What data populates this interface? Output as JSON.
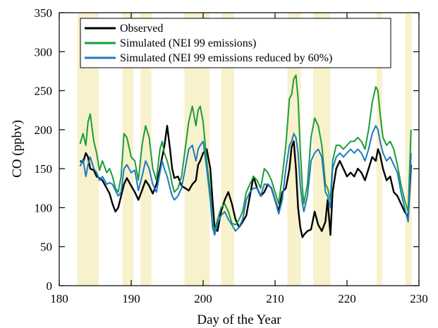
{
  "chart_data": {
    "type": "line",
    "xlabel": "Day of the Year",
    "ylabel": "CO (ppbv)",
    "xlim": [
      180,
      230
    ],
    "ylim": [
      0,
      350
    ],
    "xticks": [
      "180",
      "190",
      "200",
      "210",
      "220",
      "230"
    ],
    "yticks": [
      "0",
      "50",
      "100",
      "150",
      "200",
      "250",
      "300",
      "350"
    ],
    "legend_position": "top",
    "shaded_periods": [
      [
        182.5,
        185.5
      ],
      [
        188.8,
        190.3
      ],
      [
        191.3,
        192.8
      ],
      [
        197.4,
        200.9
      ],
      [
        202.5,
        204.3
      ],
      [
        211.7,
        213.6
      ],
      [
        215.3,
        217.7
      ],
      [
        224.1,
        224.9
      ],
      [
        228.1,
        229.0
      ]
    ],
    "series": [
      {
        "name": "Observed",
        "color": "#000000",
        "x": [
          182.9,
          183.3,
          183.7,
          184.0,
          184.3,
          184.8,
          185.2,
          185.6,
          186.0,
          186.6,
          187.0,
          187.4,
          187.8,
          188.2,
          188.6,
          189.0,
          189.4,
          190.0,
          190.5,
          191.0,
          191.5,
          192.0,
          192.5,
          193.0,
          193.5,
          194.0,
          194.3,
          194.6,
          195.0,
          195.4,
          195.7,
          196.0,
          196.5,
          197.0,
          197.5,
          198.0,
          198.5,
          199.0,
          199.3,
          199.6,
          200.0,
          200.5,
          201.0,
          201.3,
          201.6,
          202.0,
          202.5,
          203.0,
          203.5,
          204.0,
          204.5,
          205.0,
          205.5,
          206.0,
          206.5,
          207.0,
          207.5,
          208.0,
          208.5,
          209.0,
          209.5,
          210.0,
          210.5,
          211.0,
          211.5,
          212.0,
          212.3,
          212.6,
          212.9,
          213.2,
          213.5,
          213.8,
          214.0,
          214.5,
          215.0,
          215.5,
          216.0,
          216.5,
          217.0,
          217.3,
          217.7,
          218.0,
          218.5,
          219.0,
          219.5,
          220.0,
          220.5,
          221.0,
          221.5,
          222.0,
          222.5,
          223.0,
          223.5,
          224.0,
          224.3,
          224.6,
          225.0,
          225.5,
          226.0,
          226.5,
          227.0,
          227.5,
          228.0,
          228.5,
          228.9
        ],
        "y": [
          160,
          158,
          170,
          165,
          150,
          148,
          140,
          138,
          135,
          125,
          118,
          105,
          95,
          100,
          115,
          130,
          138,
          128,
          120,
          110,
          122,
          135,
          128,
          118,
          130,
          150,
          165,
          178,
          205,
          175,
          150,
          138,
          140,
          128,
          125,
          122,
          130,
          135,
          155,
          160,
          170,
          175,
          150,
          110,
          75,
          70,
          95,
          110,
          120,
          105,
          85,
          75,
          82,
          90,
          115,
          140,
          125,
          115,
          120,
          130,
          125,
          110,
          95,
          120,
          125,
          150,
          178,
          185,
          150,
          100,
          75,
          62,
          65,
          70,
          72,
          95,
          78,
          70,
          82,
          110,
          65,
          120,
          150,
          160,
          150,
          140,
          145,
          140,
          150,
          145,
          135,
          150,
          165,
          160,
          175,
          168,
          150,
          135,
          140,
          120,
          115,
          105,
          95,
          88,
          155
        ]
      },
      {
        "name": "Simulated (NEI 99 emissions)",
        "color": "#1a9e35",
        "x": [
          182.9,
          183.3,
          183.7,
          184.0,
          184.3,
          184.8,
          185.2,
          185.6,
          186.0,
          186.6,
          187.0,
          187.4,
          187.8,
          188.2,
          188.6,
          189.0,
          189.4,
          190.0,
          190.5,
          191.0,
          191.5,
          192.0,
          192.5,
          193.0,
          193.5,
          194.0,
          194.3,
          194.6,
          195.0,
          195.4,
          195.7,
          196.0,
          196.5,
          197.0,
          197.5,
          198.0,
          198.5,
          199.0,
          199.3,
          199.6,
          200.0,
          200.5,
          201.0,
          201.3,
          201.6,
          202.0,
          202.5,
          203.0,
          203.5,
          204.0,
          204.5,
          205.0,
          205.5,
          206.0,
          206.5,
          207.0,
          207.5,
          208.0,
          208.5,
          209.0,
          209.5,
          210.0,
          210.5,
          211.0,
          211.5,
          212.0,
          212.3,
          212.6,
          212.9,
          213.2,
          213.5,
          213.8,
          214.0,
          214.5,
          215.0,
          215.5,
          216.0,
          216.5,
          217.0,
          217.3,
          217.7,
          218.0,
          218.5,
          219.0,
          219.5,
          220.0,
          220.5,
          221.0,
          221.5,
          222.0,
          222.5,
          223.0,
          223.5,
          224.0,
          224.3,
          224.6,
          225.0,
          225.5,
          226.0,
          226.5,
          227.0,
          227.5,
          228.0,
          228.5,
          228.9
        ],
        "y": [
          182,
          195,
          180,
          210,
          220,
          185,
          170,
          148,
          160,
          145,
          150,
          140,
          125,
          120,
          140,
          195,
          190,
          165,
          160,
          135,
          180,
          205,
          190,
          150,
          135,
          175,
          185,
          170,
          160,
          145,
          130,
          120,
          125,
          140,
          175,
          210,
          230,
          205,
          225,
          230,
          210,
          160,
          120,
          80,
          70,
          85,
          100,
          105,
          95,
          80,
          78,
          85,
          95,
          120,
          130,
          140,
          135,
          125,
          150,
          145,
          135,
          120,
          105,
          140,
          180,
          240,
          245,
          265,
          270,
          240,
          175,
          125,
          105,
          130,
          190,
          215,
          205,
          180,
          130,
          125,
          110,
          160,
          180,
          180,
          175,
          180,
          185,
          185,
          190,
          185,
          175,
          200,
          235,
          255,
          250,
          220,
          190,
          180,
          185,
          175,
          155,
          130,
          110,
          95,
          200
        ]
      },
      {
        "name": "Simulated (NEI 99 emissions reduced by 60%)",
        "color": "#1f78c2",
        "x": [
          182.9,
          183.3,
          183.7,
          184.0,
          184.3,
          184.8,
          185.2,
          185.6,
          186.0,
          186.6,
          187.0,
          187.4,
          187.8,
          188.2,
          188.6,
          189.0,
          189.4,
          190.0,
          190.5,
          191.0,
          191.5,
          192.0,
          192.5,
          193.0,
          193.5,
          194.0,
          194.3,
          194.6,
          195.0,
          195.4,
          195.7,
          196.0,
          196.5,
          197.0,
          197.5,
          198.0,
          198.5,
          199.0,
          199.3,
          199.6,
          200.0,
          200.5,
          201.0,
          201.3,
          201.6,
          202.0,
          202.5,
          203.0,
          203.5,
          204.0,
          204.5,
          205.0,
          205.5,
          206.0,
          206.5,
          207.0,
          207.5,
          208.0,
          208.5,
          209.0,
          209.5,
          210.0,
          210.5,
          211.0,
          211.5,
          212.0,
          212.3,
          212.6,
          212.9,
          213.2,
          213.5,
          213.8,
          214.0,
          214.5,
          215.0,
          215.5,
          216.0,
          216.5,
          217.0,
          217.3,
          217.7,
          218.0,
          218.5,
          219.0,
          219.5,
          220.0,
          220.5,
          221.0,
          221.5,
          222.0,
          222.5,
          223.0,
          223.5,
          224.0,
          224.3,
          224.6,
          225.0,
          225.5,
          226.0,
          226.5,
          227.0,
          227.5,
          228.0,
          228.5,
          228.9
        ],
        "y": [
          153,
          162,
          140,
          155,
          165,
          150,
          145,
          135,
          140,
          130,
          132,
          130,
          122,
          115,
          120,
          150,
          155,
          145,
          148,
          122,
          140,
          160,
          150,
          130,
          120,
          145,
          160,
          150,
          140,
          125,
          115,
          110,
          115,
          125,
          150,
          175,
          180,
          160,
          175,
          180,
          185,
          150,
          110,
          75,
          65,
          80,
          90,
          95,
          85,
          78,
          70,
          75,
          85,
          110,
          120,
          125,
          125,
          115,
          130,
          130,
          125,
          110,
          92,
          110,
          150,
          180,
          185,
          195,
          190,
          170,
          130,
          105,
          95,
          115,
          160,
          170,
          175,
          165,
          120,
          115,
          100,
          150,
          165,
          170,
          165,
          170,
          175,
          170,
          175,
          170,
          160,
          175,
          195,
          205,
          200,
          185,
          170,
          160,
          165,
          155,
          145,
          120,
          100,
          82,
          170
        ]
      }
    ]
  }
}
